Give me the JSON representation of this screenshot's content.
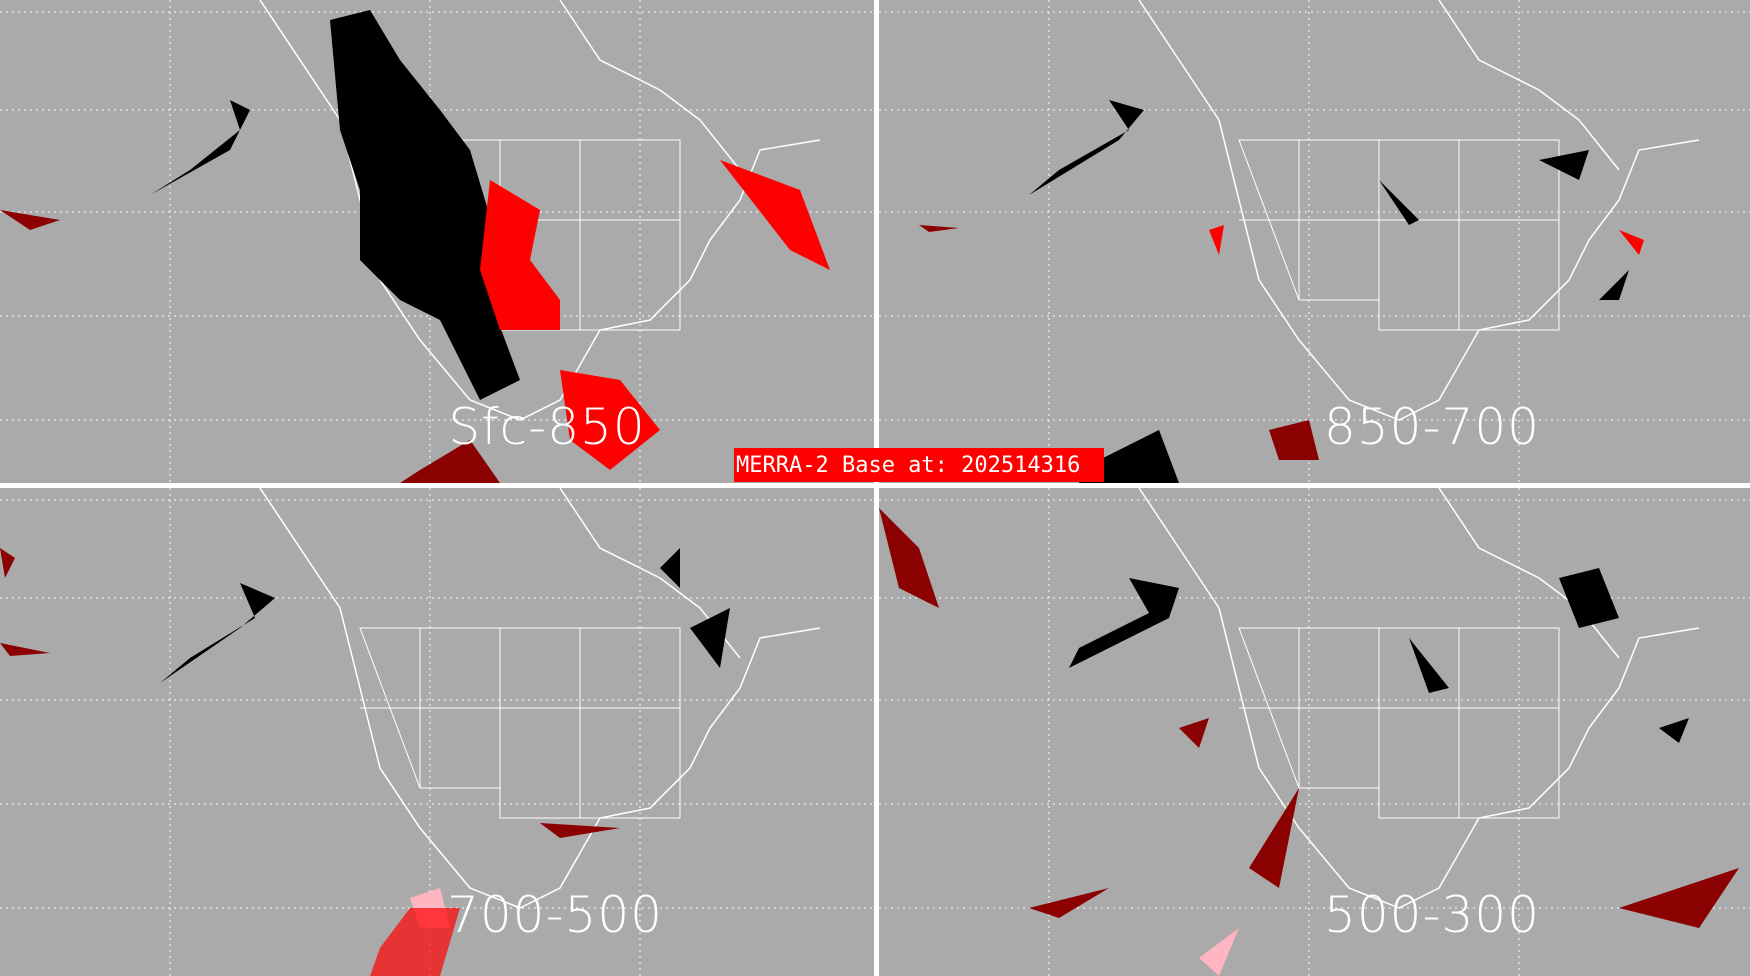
{
  "banner": {
    "text": "MERRA-2 Base at: 202514316",
    "color": "#ff0000"
  },
  "panels": [
    {
      "label": "Sfc-850"
    },
    {
      "label": "850-700"
    },
    {
      "label": "700-500"
    },
    {
      "label": "500-300"
    }
  ],
  "colors": {
    "background": "#aaaaaa",
    "coastlines": "#ffffff",
    "black_field": "#000000",
    "red_field": "#ff0000",
    "dark_red_field": "#8b0000",
    "pink_field": "#ffb6c1"
  }
}
